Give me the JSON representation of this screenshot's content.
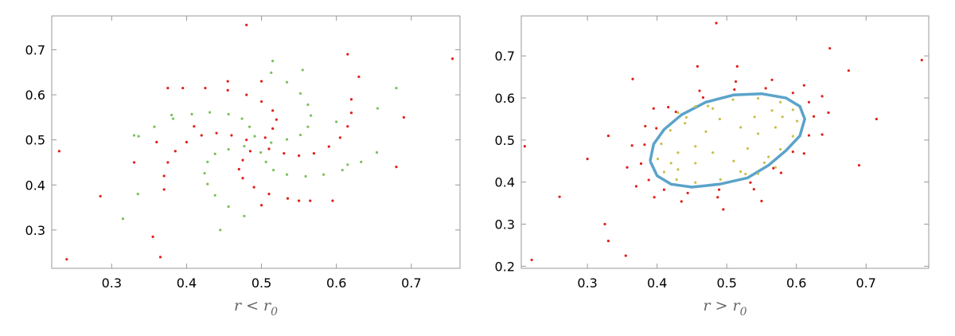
{
  "chart_data": [
    {
      "type": "scatter",
      "xlabel": {
        "text": "r < r",
        "subscript": "0"
      },
      "xlim": [
        0.22,
        0.765
      ],
      "ylim": [
        0.215,
        0.775
      ],
      "xticks": [
        0.3,
        0.4,
        0.5,
        0.6,
        0.7
      ],
      "yticks": [
        0.3,
        0.4,
        0.5,
        0.6,
        0.7
      ],
      "series": [
        {
          "color": "#7cc060",
          "mode": "points",
          "x": [
            0.477,
            0.456,
            0.438,
            0.428,
            0.424,
            0.428,
            0.438,
            0.456,
            0.477,
            0.513,
            0.534,
            0.552,
            0.562,
            0.566,
            0.562,
            0.552,
            0.534,
            0.513,
            0.499,
            0.506,
            0.516,
            0.534,
            0.559,
            0.583,
            0.608,
            0.633,
            0.654,
            0.491,
            0.484,
            0.474,
            0.456,
            0.431,
            0.407,
            0.382,
            0.357,
            0.336,
            0.515,
            0.555,
            0.68,
            0.655,
            0.615,
            0.33,
            0.315,
            0.335,
            0.445,
            0.38,
            0.6
          ],
          "y": [
            0.486,
            0.479,
            0.469,
            0.451,
            0.426,
            0.402,
            0.377,
            0.352,
            0.331,
            0.494,
            0.501,
            0.511,
            0.529,
            0.554,
            0.578,
            0.603,
            0.628,
            0.649,
            0.472,
            0.451,
            0.433,
            0.423,
            0.419,
            0.423,
            0.433,
            0.451,
            0.472,
            0.508,
            0.529,
            0.547,
            0.557,
            0.561,
            0.557,
            0.547,
            0.529,
            0.508,
            0.675,
            0.655,
            0.615,
            0.57,
            0.445,
            0.51,
            0.325,
            0.38,
            0.3,
            0.555,
            0.54
          ]
        },
        {
          "color": "#e0201b",
          "mode": "points",
          "x": [
            0.48,
            0.46,
            0.44,
            0.42,
            0.4,
            0.385,
            0.375,
            0.37,
            0.37,
            0.51,
            0.53,
            0.55,
            0.57,
            0.59,
            0.605,
            0.615,
            0.62,
            0.62,
            0.485,
            0.475,
            0.47,
            0.475,
            0.49,
            0.51,
            0.535,
            0.565,
            0.595,
            0.505,
            0.515,
            0.52,
            0.515,
            0.5,
            0.48,
            0.455,
            0.425,
            0.395,
            0.48,
            0.615,
            0.755,
            0.23,
            0.24,
            0.285,
            0.355,
            0.365,
            0.69,
            0.68,
            0.63,
            0.55,
            0.375,
            0.33,
            0.36,
            0.41,
            0.455,
            0.5,
            0.5
          ],
          "y": [
            0.5,
            0.51,
            0.515,
            0.51,
            0.495,
            0.475,
            0.45,
            0.42,
            0.39,
            0.48,
            0.47,
            0.465,
            0.47,
            0.485,
            0.505,
            0.53,
            0.56,
            0.59,
            0.475,
            0.455,
            0.435,
            0.415,
            0.395,
            0.38,
            0.37,
            0.365,
            0.365,
            0.505,
            0.525,
            0.545,
            0.565,
            0.585,
            0.6,
            0.61,
            0.615,
            0.615,
            0.755,
            0.69,
            0.68,
            0.475,
            0.235,
            0.375,
            0.285,
            0.24,
            0.55,
            0.44,
            0.64,
            0.365,
            0.615,
            0.45,
            0.495,
            0.53,
            0.63,
            0.63,
            0.355
          ]
        }
      ]
    },
    {
      "type": "scatter",
      "xlabel": {
        "text": "r > r",
        "subscript": "0"
      },
      "xlim": [
        0.205,
        0.79
      ],
      "ylim": [
        0.195,
        0.795
      ],
      "xticks": [
        0.3,
        0.4,
        0.5,
        0.6,
        0.7
      ],
      "yticks": [
        0.2,
        0.3,
        0.4,
        0.5,
        0.6,
        0.7
      ],
      "series": [
        {
          "color": "#e0201b",
          "mode": "points",
          "x": [
            0.377,
            0.382,
            0.399,
            0.427,
            0.466,
            0.511,
            0.556,
            0.595,
            0.618,
            0.625,
            0.618,
            0.595,
            0.567,
            0.534,
            0.489,
            0.444,
            0.41,
            0.388,
            0.357,
            0.364,
            0.383,
            0.416,
            0.461,
            0.513,
            0.565,
            0.611,
            0.637,
            0.646,
            0.637,
            0.611,
            0.578,
            0.539,
            0.487,
            0.435,
            0.396,
            0.37,
            0.485,
            0.648,
            0.78,
            0.21,
            0.22,
            0.26,
            0.3,
            0.325,
            0.33,
            0.355,
            0.365,
            0.715,
            0.69,
            0.675,
            0.458,
            0.515,
            0.55,
            0.495,
            0.395,
            0.33
          ],
          "y": [
            0.444,
            0.489,
            0.528,
            0.567,
            0.601,
            0.62,
            0.623,
            0.612,
            0.59,
            0.556,
            0.511,
            0.472,
            0.433,
            0.399,
            0.382,
            0.374,
            0.382,
            0.405,
            0.435,
            0.487,
            0.533,
            0.578,
            0.617,
            0.639,
            0.643,
            0.63,
            0.604,
            0.565,
            0.513,
            0.468,
            0.422,
            0.383,
            0.364,
            0.354,
            0.364,
            0.39,
            0.778,
            0.718,
            0.69,
            0.485,
            0.215,
            0.365,
            0.455,
            0.3,
            0.26,
            0.225,
            0.645,
            0.55,
            0.44,
            0.665,
            0.675,
            0.675,
            0.355,
            0.335,
            0.575,
            0.51
          ]
        },
        {
          "color": "#5ba3c9",
          "mode": "line",
          "x": [
            0.39,
            0.395,
            0.41,
            0.435,
            0.47,
            0.51,
            0.55,
            0.585,
            0.605,
            0.612,
            0.605,
            0.585,
            0.56,
            0.53,
            0.49,
            0.45,
            0.42,
            0.4,
            0.39
          ],
          "y": [
            0.45,
            0.49,
            0.525,
            0.56,
            0.59,
            0.607,
            0.61,
            0.6,
            0.58,
            0.55,
            0.51,
            0.475,
            0.44,
            0.41,
            0.395,
            0.388,
            0.395,
            0.415,
            0.45
          ]
        },
        {
          "color": "#c8c04a",
          "mode": "points",
          "x": [
            0.52,
            0.54,
            0.565,
            0.58,
            0.57,
            0.545,
            0.47,
            0.44,
            0.43,
            0.455,
            0.48,
            0.49,
            0.48,
            0.455,
            0.43,
            0.42,
            0.43,
            0.455,
            0.53,
            0.56,
            0.57,
            0.545,
            0.52,
            0.51,
            0.401,
            0.406,
            0.419,
            0.442,
            0.473,
            0.509,
            0.545,
            0.577,
            0.595,
            0.601,
            0.595,
            0.577,
            0.554,
            0.527,
            0.491,
            0.455,
            0.428,
            0.41
          ],
          "y": [
            0.53,
            0.555,
            0.57,
            0.555,
            0.53,
            0.515,
            0.52,
            0.54,
            0.565,
            0.58,
            0.575,
            0.55,
            0.47,
            0.445,
            0.43,
            0.445,
            0.47,
            0.485,
            0.48,
            0.46,
            0.435,
            0.42,
            0.425,
            0.45,
            0.455,
            0.491,
            0.523,
            0.554,
            0.581,
            0.596,
            0.599,
            0.59,
            0.572,
            0.545,
            0.509,
            0.478,
            0.446,
            0.419,
            0.406,
            0.399,
            0.406,
            0.424
          ]
        }
      ]
    }
  ]
}
